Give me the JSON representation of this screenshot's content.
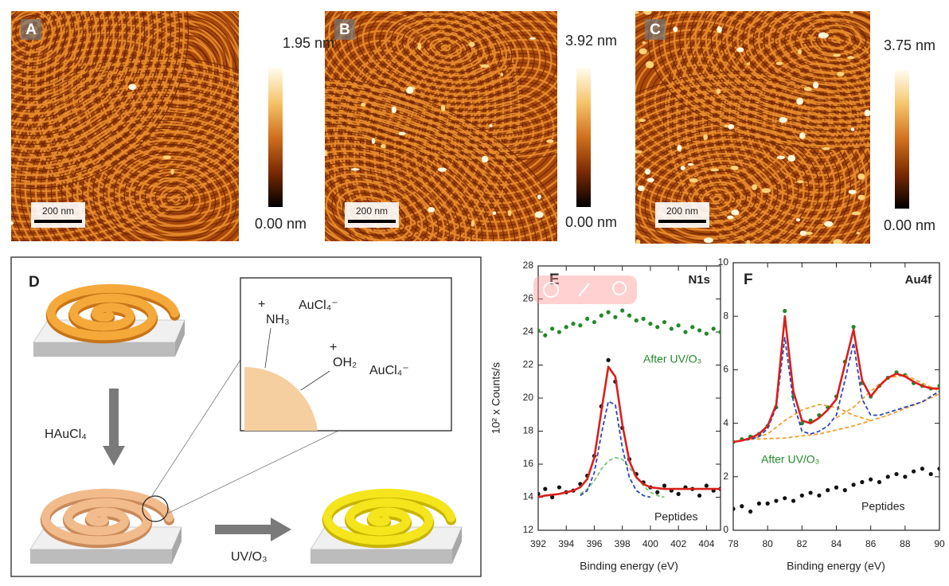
{
  "afm_panels": [
    {
      "label": "A",
      "scale_bar": "200 nm",
      "colorbar_max": "1.95 nm",
      "colorbar_min": "0.00 nm"
    },
    {
      "label": "B",
      "scale_bar": "200 nm",
      "colorbar_max": "3.92 nm",
      "colorbar_min": "0.00 nm"
    },
    {
      "label": "C",
      "scale_bar": "200 nm",
      "colorbar_max": "3.75 nm",
      "colorbar_min": "0.00 nm"
    }
  ],
  "schematic": {
    "label": "D",
    "reagent": "HAuCl₄",
    "treatment": "UV/O₃",
    "amine_charge": "+",
    "amine": "NH₃",
    "counter_ion_1": "AuCl₄⁻",
    "water_charge": "+",
    "water": "OH₂",
    "counter_ion_2": "AuCl₄⁻"
  },
  "chart_data": [
    {
      "type": "scatter",
      "panel_label": "E",
      "title": "N1s",
      "x_label": "Binding energy (eV)",
      "y_label": "10² x Counts/s",
      "xlim": [
        392,
        405
      ],
      "xticks": [
        392,
        394,
        396,
        398,
        400,
        402,
        404
      ],
      "ylim": [
        12,
        28
      ],
      "yticks": [
        12,
        14,
        16,
        18,
        20,
        22,
        24,
        26,
        28
      ],
      "series": [
        {
          "name": "After UV/O₃",
          "style": "scatter",
          "color": "#23892a",
          "x": [
            392,
            392.5,
            393,
            393.5,
            394,
            394.5,
            395,
            395.5,
            396,
            396.5,
            397,
            397.5,
            398,
            398.5,
            399,
            399.5,
            400,
            400.5,
            401,
            401.5,
            402,
            402.5,
            403,
            403.5,
            404,
            404.5,
            405
          ],
          "values": [
            24.1,
            23.8,
            24.2,
            24.0,
            24.3,
            24.5,
            24.4,
            24.8,
            24.6,
            25.0,
            25.2,
            24.9,
            25.3,
            25.0,
            24.7,
            24.8,
            24.5,
            24.3,
            24.6,
            24.2,
            24.4,
            24.0,
            24.3,
            24.1,
            23.9,
            24.2,
            24.0
          ]
        },
        {
          "name": "Peptides",
          "style": "scatter",
          "color": "#111111",
          "x": [
            392,
            392.5,
            393,
            393.5,
            394,
            394.5,
            395,
            395.5,
            396,
            396.5,
            397,
            397.5,
            398,
            398.5,
            399,
            399.5,
            400,
            400.5,
            401,
            401.5,
            402,
            402.5,
            403,
            403.5,
            404,
            404.5,
            405
          ],
          "values": [
            14.2,
            14.5,
            14.0,
            14.6,
            14.3,
            14.4,
            14.8,
            15.3,
            16.5,
            19.5,
            22.3,
            21.0,
            18.2,
            16.3,
            15.4,
            14.9,
            14.6,
            14.3,
            14.7,
            14.4,
            14.2,
            14.6,
            14.5,
            14.1,
            14.7,
            14.4,
            14.5
          ]
        },
        {
          "style": "dashed",
          "color": "#7cc47c",
          "x": [
            395,
            395.5,
            396,
            396.5,
            397,
            397.5,
            398,
            398.5,
            399,
            399.5,
            400,
            400.5,
            401
          ],
          "values": [
            14.2,
            14.5,
            15.0,
            15.7,
            16.2,
            16.4,
            16.3,
            15.8,
            15.2,
            14.7,
            14.3,
            14.1,
            14.0
          ]
        },
        {
          "style": "dashed",
          "color": "#2f45b8",
          "x": [
            395,
            395.5,
            396,
            396.5,
            397,
            397.5,
            398,
            398.5,
            399,
            399.5,
            400
          ],
          "values": [
            14.1,
            14.4,
            15.5,
            17.8,
            19.8,
            19.6,
            17.0,
            15.2,
            14.4,
            14.1,
            14.0
          ]
        },
        {
          "style": "line",
          "color": "#d8201c",
          "x": [
            392,
            392.5,
            393,
            393.5,
            394,
            394.5,
            395,
            395.5,
            396,
            396.5,
            397,
            397.5,
            398,
            398.5,
            399,
            399.5,
            400,
            400.5,
            401,
            401.5,
            402,
            402.5,
            403,
            403.5,
            404,
            404.5,
            405
          ],
          "values": [
            14.0,
            14.1,
            14.15,
            14.2,
            14.3,
            14.4,
            14.6,
            15.1,
            16.4,
            19.2,
            21.9,
            21.3,
            18.4,
            16.2,
            15.2,
            14.8,
            14.6,
            14.55,
            14.5,
            14.5,
            14.5,
            14.5,
            14.5,
            14.5,
            14.5,
            14.5,
            14.5
          ]
        }
      ]
    },
    {
      "type": "scatter",
      "panel_label": "F",
      "title": "Au4f",
      "x_label": "Binding energy (eV)",
      "xlim": [
        78,
        90
      ],
      "xticks": [
        78,
        80,
        82,
        84,
        86,
        88,
        90
      ],
      "ylim": [
        0,
        10
      ],
      "yticks": [
        0,
        2,
        4,
        6,
        8,
        10
      ],
      "series": [
        {
          "name": "After UV/O₃",
          "style": "scatter",
          "color": "#23892a",
          "x": [
            78,
            78.5,
            79,
            79.5,
            80,
            80.5,
            81,
            81.5,
            82,
            82.5,
            83,
            83.5,
            84,
            84.5,
            85,
            85.5,
            86,
            86.5,
            87,
            87.5,
            88,
            88.5,
            89,
            89.5,
            90
          ],
          "values": [
            3.3,
            3.4,
            3.5,
            3.6,
            3.9,
            4.6,
            8.2,
            5.0,
            4.0,
            4.1,
            4.3,
            4.6,
            5.0,
            6.3,
            7.6,
            5.5,
            5.0,
            5.4,
            5.7,
            5.9,
            5.8,
            5.5,
            5.4,
            5.3,
            5.4
          ]
        },
        {
          "name": "Peptides",
          "style": "scatter",
          "color": "#111111",
          "x": [
            78,
            78.5,
            79,
            79.5,
            80,
            80.5,
            81,
            81.5,
            82,
            82.5,
            83,
            83.5,
            84,
            84.5,
            85,
            85.5,
            86,
            86.5,
            87,
            87.5,
            88,
            88.5,
            89,
            89.5,
            90
          ],
          "values": [
            0.8,
            0.9,
            0.7,
            1.0,
            1.0,
            1.1,
            1.2,
            1.1,
            1.3,
            1.4,
            1.3,
            1.5,
            1.6,
            1.5,
            1.7,
            1.8,
            1.9,
            1.8,
            2.0,
            2.1,
            2.0,
            2.2,
            2.3,
            2.1,
            2.3
          ]
        },
        {
          "style": "dashed",
          "color": "#f0a030",
          "x": [
            79,
            81,
            83,
            85,
            87,
            89,
            90
          ],
          "values": [
            3.4,
            3.45,
            3.6,
            3.9,
            4.3,
            4.8,
            5.1
          ]
        },
        {
          "style": "dashed",
          "color": "#f0a030",
          "x": [
            79,
            80,
            81,
            82,
            83,
            84,
            85,
            86
          ],
          "values": [
            3.4,
            3.6,
            4.1,
            4.5,
            4.7,
            4.6,
            4.3,
            4.1
          ]
        },
        {
          "style": "dashed",
          "color": "#f0a030",
          "x": [
            84,
            85,
            86,
            87,
            88,
            89,
            90
          ],
          "values": [
            4.2,
            4.6,
            5.2,
            5.7,
            5.8,
            5.5,
            5.2
          ]
        },
        {
          "style": "dashed",
          "color": "#2f45b8",
          "x": [
            78,
            78.5,
            79,
            79.5,
            80,
            80.5,
            81,
            81.5,
            82,
            82.5,
            83,
            83.5,
            84,
            84.5,
            85,
            85.5,
            86,
            86.5,
            87,
            87.5,
            88,
            88.5,
            89,
            89.5,
            90
          ],
          "values": [
            3.3,
            3.35,
            3.4,
            3.5,
            3.8,
            4.6,
            7.2,
            4.8,
            3.7,
            3.6,
            3.7,
            3.9,
            4.3,
            5.6,
            7.0,
            4.9,
            4.3,
            4.3,
            4.4,
            4.5,
            4.6,
            4.7,
            4.8,
            5.0,
            5.2
          ]
        },
        {
          "style": "line",
          "color": "#d8201c",
          "x": [
            78,
            78.5,
            79,
            79.5,
            80,
            80.5,
            81,
            81.5,
            82,
            82.5,
            83,
            83.5,
            84,
            84.5,
            85,
            85.5,
            86,
            86.5,
            87,
            87.5,
            88,
            88.5,
            89,
            89.5,
            90
          ],
          "values": [
            3.3,
            3.35,
            3.45,
            3.6,
            3.9,
            4.7,
            8.0,
            5.2,
            4.1,
            4.0,
            4.2,
            4.5,
            4.9,
            6.2,
            7.5,
            5.6,
            5.0,
            5.4,
            5.7,
            5.85,
            5.75,
            5.55,
            5.4,
            5.3,
            5.3
          ]
        }
      ]
    }
  ]
}
